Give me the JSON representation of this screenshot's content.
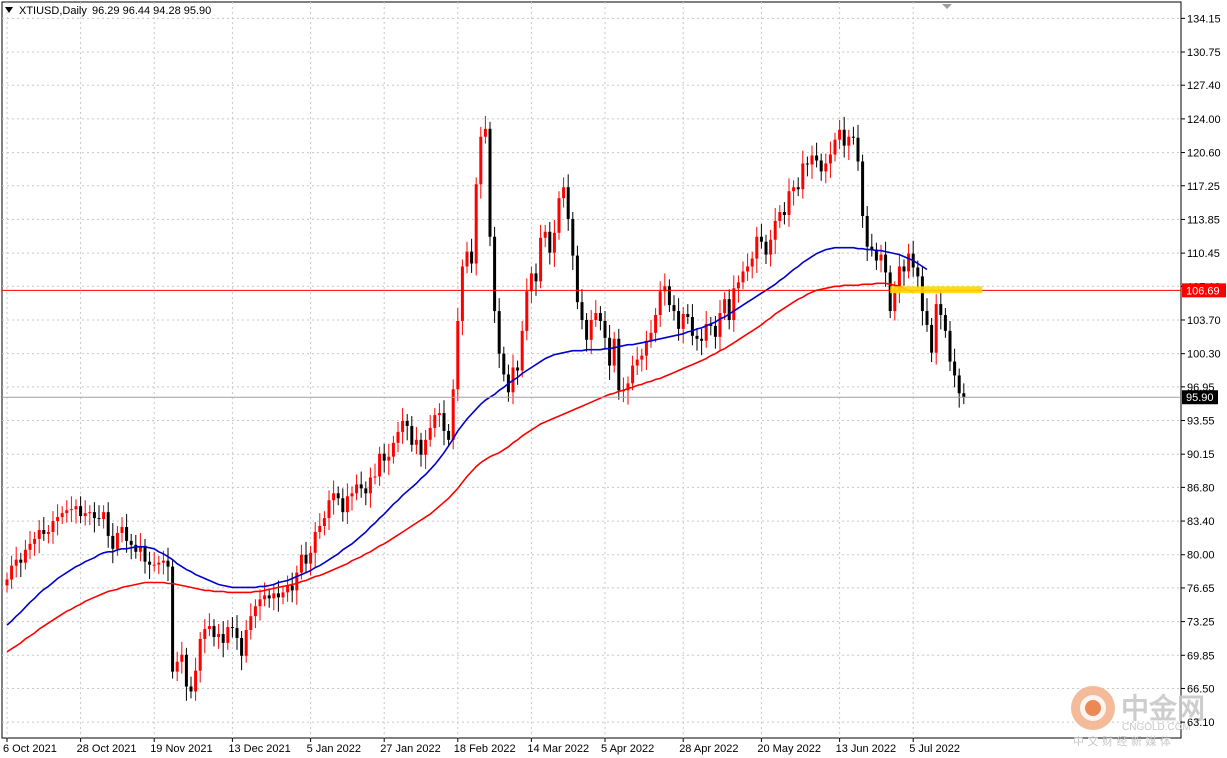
{
  "header": {
    "symbol_timeframe": "XTIUSD,Daily",
    "ohlc": "96.29 96.44 94.28 95.90"
  },
  "watermark": {
    "name": "中金网",
    "domain": "CNGOLD.COM",
    "tagline": "中 文 财 经 新 媒 体"
  },
  "colors": {
    "background": "#ffffff",
    "grid": "#c8c8c8",
    "bull_candle": "#ff0000",
    "bear_candle": "#000000",
    "ma_fast": "#0000cc",
    "ma_slow": "#ff0000",
    "horizontal_line": "#ff0000",
    "price_tag": "#ff0000",
    "current_price_tag": "#000000",
    "highlight_zone": "#ffd700"
  },
  "chart_data": {
    "type": "candlestick",
    "symbol": "XTIUSD",
    "timeframe": "Daily",
    "ylim": [
      61.5,
      135.8
    ],
    "y_ticks": [
      "134.15",
      "130.75",
      "127.40",
      "124.00",
      "120.60",
      "117.25",
      "113.85",
      "110.45",
      "107.10",
      "103.70",
      "100.30",
      "96.95",
      "93.55",
      "90.15",
      "86.80",
      "83.40",
      "80.00",
      "76.65",
      "73.25",
      "69.85",
      "66.50",
      "63.10"
    ],
    "x_ticks": [
      "6 Oct 2021",
      "28 Oct 2021",
      "19 Nov 2021",
      "13 Dec 2021",
      "5 Jan 2022",
      "27 Jan 2022",
      "18 Feb 2022",
      "14 Mar 2022",
      "5 Apr 2022",
      "28 Apr 2022",
      "20 May 2022",
      "13 Jun 2022",
      "5 Jul 2022"
    ],
    "x_tick_index": [
      0,
      16,
      32,
      49,
      66,
      82,
      98,
      114,
      130,
      147,
      164,
      181,
      197
    ],
    "current_price": 95.9,
    "current_price_label": "95.90",
    "horizontal_line": {
      "value": 106.69,
      "label": "106.69"
    },
    "highlight_zone": {
      "from_index": 192,
      "to_index": 212,
      "low": 106.4,
      "high": 107.1
    },
    "closes": [
      77.5,
      78.9,
      79.5,
      79.2,
      80.5,
      81.1,
      81.6,
      82.5,
      82.1,
      82.3,
      83.4,
      83.8,
      84.2,
      84.5,
      84.6,
      84.9,
      83.9,
      84.2,
      84.3,
      83.7,
      83.6,
      84.3,
      81.9,
      80.6,
      82.2,
      82.8,
      81.4,
      81.0,
      80.3,
      80.9,
      79.3,
      79.0,
      79.0,
      79.2,
      79.4,
      78.8,
      68.2,
      69.2,
      69.9,
      66.7,
      66.2,
      68.3,
      71.5,
      72.5,
      72.8,
      71.7,
      72.0,
      71.1,
      72.7,
      72.6,
      71.6,
      69.8,
      72.4,
      73.8,
      74.8,
      75.5,
      75.9,
      75.6,
      76.1,
      75.7,
      76.2,
      76.9,
      76.4,
      78.2,
      80.0,
      79.1,
      80.2,
      82.3,
      82.9,
      83.7,
      85.5,
      86.2,
      85.7,
      84.3,
      85.9,
      86.2,
      87.1,
      86.7,
      86.2,
      87.8,
      87.9,
      90.2,
      89.5,
      89.9,
      91.3,
      92.4,
      93.5,
      93.0,
      91.1,
      91.6,
      90.1,
      91.6,
      92.8,
      94.1,
      94.3,
      92.5,
      91.6,
      96.7,
      103.6,
      109.1,
      110.6,
      109.4,
      117.4,
      122.2,
      123.0,
      112.1,
      104.6,
      100.3,
      98.2,
      96.4,
      98.9,
      98.6,
      102.6,
      106.6,
      108.4,
      107.6,
      112.0,
      112.6,
      110.5,
      112.5,
      116.0,
      117.1,
      113.9,
      110.2,
      105.5,
      103.7,
      101.7,
      103.7,
      104.4,
      103.6,
      101.9,
      99.1,
      101.8,
      96.6,
      96.6,
      97.3,
      99.1,
      99.7,
      100.1,
      101.6,
      102.4,
      104.2,
      106.6,
      107.1,
      105.2,
      104.6,
      102.8,
      104.3,
      104.0,
      102.1,
      101.8,
      101.6,
      103.3,
      103.1,
      102.0,
      104.4,
      105.8,
      103.7,
      106.9,
      107.5,
      108.6,
      109.1,
      109.9,
      112.1,
      111.6,
      110.3,
      111.8,
      113.7,
      114.6,
      114.3,
      116.7,
      117.1,
      116.9,
      119.5,
      119.4,
      120.3,
      119.8,
      118.7,
      119.5,
      120.4,
      121.9,
      122.9,
      121.3,
      122.2,
      122.1,
      119.7,
      114.2,
      111.1,
      110.8,
      109.7,
      110.3,
      108.5,
      104.6,
      106.6,
      109.1,
      108.6,
      110.4,
      109.0,
      108.1,
      104.6,
      103.2,
      100.4,
      105.3,
      104.2,
      102.6,
      99.5,
      98.1,
      96.3,
      95.9
    ],
    "series": [
      {
        "name": "MA fast",
        "values": [
          72.9,
          73.3,
          73.8,
          74.2,
          74.7,
          75.2,
          75.6,
          76.1,
          76.5,
          76.8,
          77.2,
          77.6,
          77.9,
          78.2,
          78.5,
          78.8,
          79.0,
          79.3,
          79.5,
          79.7,
          80.0,
          80.2,
          80.3,
          80.3,
          80.5,
          80.6,
          80.6,
          80.7,
          80.8,
          80.8,
          80.8,
          80.7,
          80.6,
          80.3,
          80.1,
          79.8,
          79.5,
          79.1,
          78.8,
          78.5,
          78.3,
          78.0,
          77.8,
          77.6,
          77.4,
          77.2,
          77.0,
          76.9,
          76.8,
          76.7,
          76.7,
          76.7,
          76.7,
          76.7,
          76.7,
          76.8,
          76.8,
          76.9,
          77.0,
          77.2,
          77.3,
          77.4,
          77.6,
          77.8,
          78.0,
          78.2,
          78.4,
          78.7,
          78.9,
          79.2,
          79.5,
          79.8,
          80.1,
          80.5,
          80.8,
          81.1,
          81.5,
          81.9,
          82.3,
          82.8,
          83.2,
          83.7,
          84.1,
          84.6,
          85.1,
          85.5,
          86.0,
          86.4,
          86.8,
          87.2,
          87.7,
          88.1,
          88.6,
          89.1,
          89.7,
          90.3,
          91.0,
          91.7,
          92.5,
          93.1,
          93.7,
          94.2,
          94.7,
          95.2,
          95.6,
          95.9,
          96.2,
          96.6,
          96.9,
          97.3,
          97.6,
          97.9,
          98.3,
          98.6,
          98.9,
          99.2,
          99.5,
          99.8,
          100.0,
          100.2,
          100.3,
          100.4,
          100.5,
          100.6,
          100.6,
          100.6,
          100.7,
          100.7,
          100.7,
          100.7,
          100.8,
          100.8,
          100.9,
          101.0,
          101.1,
          101.2,
          101.2,
          101.3,
          101.4,
          101.5,
          101.6,
          101.7,
          101.8,
          101.9,
          102.0,
          102.1,
          102.2,
          102.3,
          102.5,
          102.6,
          102.8,
          102.9,
          103.1,
          103.3,
          103.5,
          103.8,
          104.0,
          104.3,
          104.6,
          104.9,
          105.2,
          105.5,
          105.8,
          106.1,
          106.4,
          106.7,
          107.0,
          107.3,
          107.7,
          108.0,
          108.4,
          108.8,
          109.1,
          109.5,
          109.8,
          110.1,
          110.4,
          110.6,
          110.8,
          110.9,
          111.0,
          111.0,
          111.0,
          111.0,
          111.0,
          110.9,
          110.9,
          110.8,
          110.8,
          110.7,
          110.7,
          110.6,
          110.5,
          110.4,
          110.3,
          110.1,
          109.9,
          109.7,
          109.4,
          109.1,
          108.8
        ]
      },
      {
        "name": "MA slow",
        "values": [
          70.2,
          70.5,
          70.8,
          71.1,
          71.5,
          71.8,
          72.1,
          72.5,
          72.8,
          73.1,
          73.4,
          73.7,
          74.0,
          74.3,
          74.5,
          74.8,
          75.0,
          75.3,
          75.5,
          75.7,
          75.9,
          76.1,
          76.3,
          76.4,
          76.5,
          76.7,
          76.8,
          76.9,
          77.0,
          77.1,
          77.2,
          77.2,
          77.2,
          77.2,
          77.2,
          77.1,
          77.1,
          77.0,
          76.9,
          76.8,
          76.7,
          76.6,
          76.5,
          76.4,
          76.4,
          76.3,
          76.3,
          76.3,
          76.2,
          76.2,
          76.2,
          76.2,
          76.2,
          76.2,
          76.3,
          76.3,
          76.4,
          76.5,
          76.6,
          76.7,
          76.8,
          76.9,
          77.0,
          77.1,
          77.3,
          77.4,
          77.6,
          77.8,
          77.9,
          78.1,
          78.3,
          78.5,
          78.7,
          78.9,
          79.1,
          79.4,
          79.6,
          79.8,
          80.1,
          80.3,
          80.6,
          80.9,
          81.1,
          81.4,
          81.7,
          82.0,
          82.3,
          82.6,
          82.9,
          83.2,
          83.5,
          83.8,
          84.1,
          84.5,
          84.9,
          85.3,
          85.7,
          86.2,
          86.7,
          87.3,
          87.9,
          88.4,
          88.9,
          89.3,
          89.6,
          89.9,
          90.1,
          90.3,
          90.6,
          90.9,
          91.3,
          91.6,
          92.0,
          92.3,
          92.6,
          92.9,
          93.2,
          93.4,
          93.6,
          93.8,
          94.0,
          94.2,
          94.4,
          94.6,
          94.8,
          95.0,
          95.2,
          95.4,
          95.6,
          95.8,
          96.0,
          96.2,
          96.3,
          96.5,
          96.6,
          96.8,
          96.9,
          97.1,
          97.2,
          97.4,
          97.5,
          97.7,
          97.8,
          98.0,
          98.2,
          98.4,
          98.6,
          98.8,
          99.0,
          99.2,
          99.4,
          99.6,
          99.8,
          100.1,
          100.3,
          100.6,
          100.8,
          101.1,
          101.4,
          101.7,
          102.0,
          102.3,
          102.6,
          102.9,
          103.2,
          103.6,
          103.9,
          104.3,
          104.6,
          104.9,
          105.2,
          105.5,
          105.8,
          106.0,
          106.3,
          106.5,
          106.7,
          106.8,
          106.9,
          107.0,
          107.1,
          107.1,
          107.2,
          107.2,
          107.2,
          107.2,
          107.3,
          107.3,
          107.3,
          107.4,
          107.4,
          107.4,
          107.3,
          107.2,
          107.1,
          106.9,
          106.7,
          106.5
        ]
      }
    ]
  }
}
